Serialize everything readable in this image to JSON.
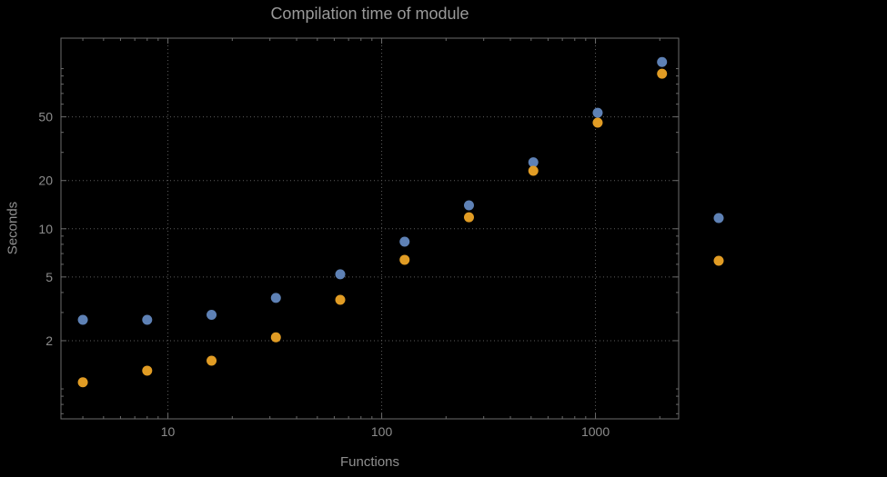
{
  "chart_data": {
    "type": "scatter",
    "title": "Compilation time of module",
    "xlabel": "Functions",
    "ylabel": "Seconds",
    "x_scale": "log",
    "y_scale": "log",
    "x_range": [
      3.16,
      2450
    ],
    "y_range": [
      0.65,
      155
    ],
    "x_ticks": [
      10,
      100,
      1000
    ],
    "y_ticks": [
      2,
      5,
      10,
      20,
      50
    ],
    "grid": "dotted",
    "legend_position": "right-outside",
    "x": [
      4,
      8,
      16,
      32,
      64,
      128,
      256,
      512,
      1024,
      2048
    ],
    "series": [
      {
        "name": "series-blue",
        "color": "#5e81b5",
        "values": [
          2.7,
          2.7,
          2.9,
          3.7,
          5.2,
          8.3,
          14,
          26,
          53,
          110
        ]
      },
      {
        "name": "series-orange",
        "color": "#e19c24",
        "values": [
          1.1,
          1.3,
          1.5,
          2.1,
          3.6,
          6.4,
          11.8,
          23,
          46,
          93
        ]
      }
    ],
    "colors": {
      "background": "#000000",
      "text": "#8c8c8c",
      "grid": "#5c5c5c",
      "frame": "#6b6b6b"
    }
  }
}
